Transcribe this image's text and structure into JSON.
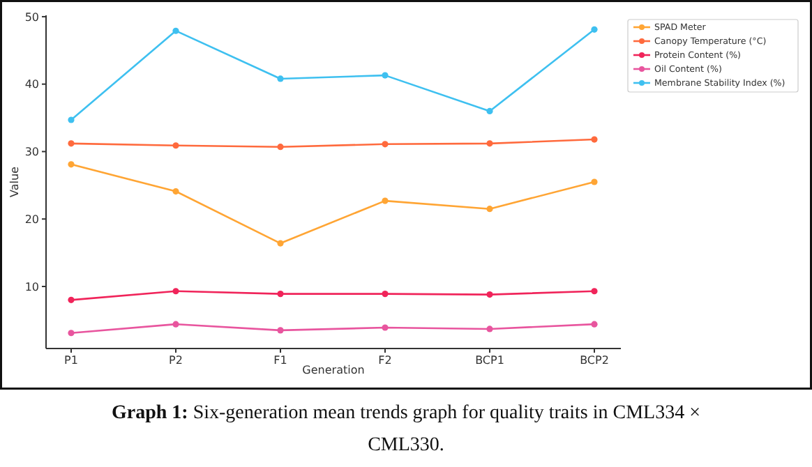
{
  "chart_data": {
    "type": "line",
    "xlabel": "Generation",
    "ylabel": "Value",
    "categories": [
      "P1",
      "P2",
      "F1",
      "F2",
      "BCP1",
      "BCP2"
    ],
    "series": [
      {
        "name": "SPAD Meter",
        "color": "#ffa534",
        "values": [
          28.1,
          24.1,
          16.4,
          22.7,
          21.5,
          25.5
        ]
      },
      {
        "name": "Canopy Temperature (°C)",
        "color": "#ff6a3d",
        "values": [
          31.2,
          30.9,
          30.7,
          31.1,
          31.2,
          31.8
        ]
      },
      {
        "name": "Protein Content (%)",
        "color": "#f0245a",
        "values": [
          8.0,
          9.3,
          8.9,
          8.9,
          8.8,
          9.3
        ]
      },
      {
        "name": "Oil Content (%)",
        "color": "#e8559e",
        "values": [
          3.1,
          4.4,
          3.5,
          3.9,
          3.7,
          4.4
        ]
      },
      {
        "name": "Membrane Stability Index (%)",
        "color": "#3ec0f0",
        "values": [
          34.7,
          47.9,
          40.8,
          41.3,
          36.0,
          48.1
        ]
      }
    ],
    "ylim": [
      0.8,
      50.2
    ],
    "yticks": [
      10,
      20,
      30,
      40,
      50
    ],
    "grid": false,
    "legend": "top right",
    "marker": "circle",
    "line_style": "solid",
    "annotations": [
      "Graph 1: Six-generation mean trends graph for quality traits in CML334 × CML330."
    ]
  }
}
